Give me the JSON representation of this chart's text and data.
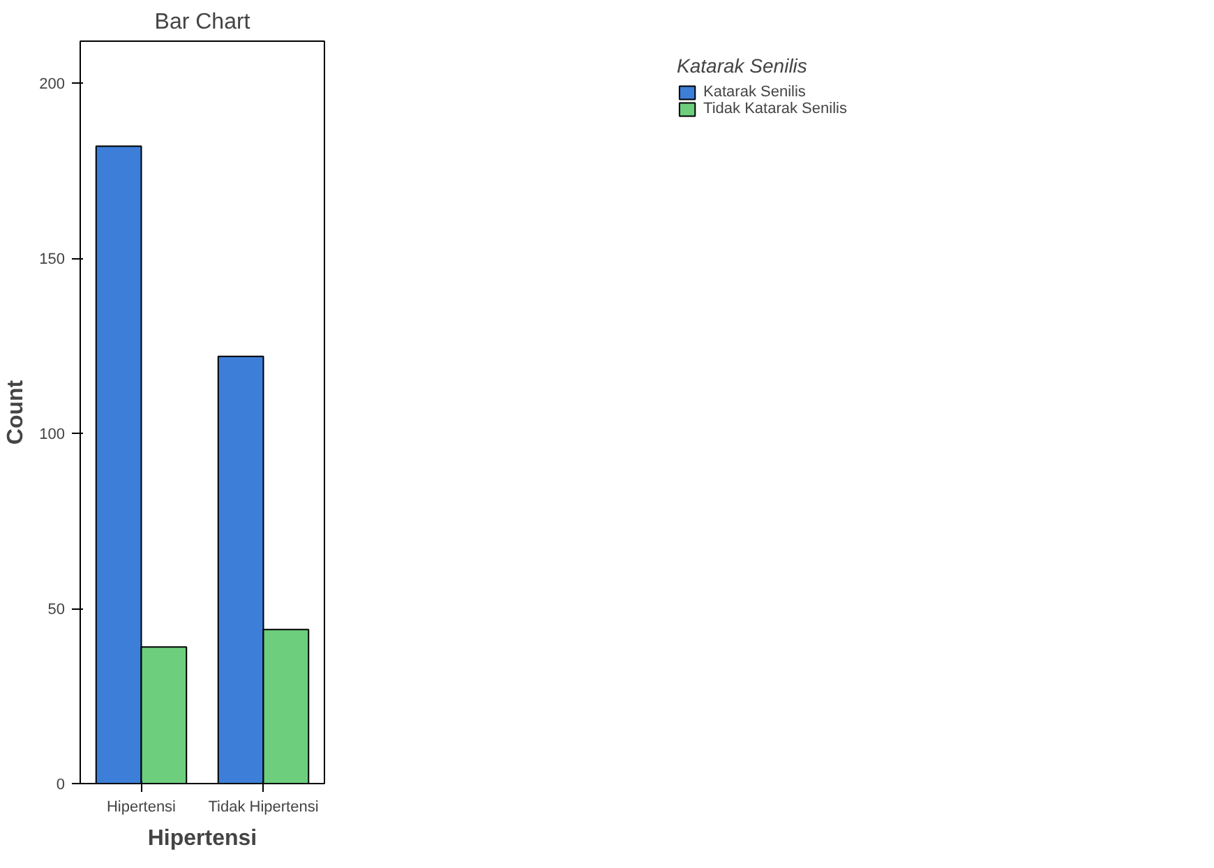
{
  "chart_data": {
    "type": "bar",
    "title": "Bar Chart",
    "xlabel": "Hipertensi",
    "ylabel": "Count",
    "legend_title": "Katarak Senilis",
    "categories": [
      "Hipertensi",
      "Tidak Hipertensi"
    ],
    "series": [
      {
        "name": "Katarak Senilis",
        "color": "#3d7fd8",
        "values": [
          182,
          122
        ]
      },
      {
        "name": "Tidak Katarak Senilis",
        "color": "#6dcf7d",
        "values": [
          39,
          44
        ]
      }
    ],
    "ylim": [
      0,
      212
    ],
    "yticks": [
      0,
      50,
      100,
      150,
      200
    ],
    "grid": false,
    "legend": "top right"
  }
}
